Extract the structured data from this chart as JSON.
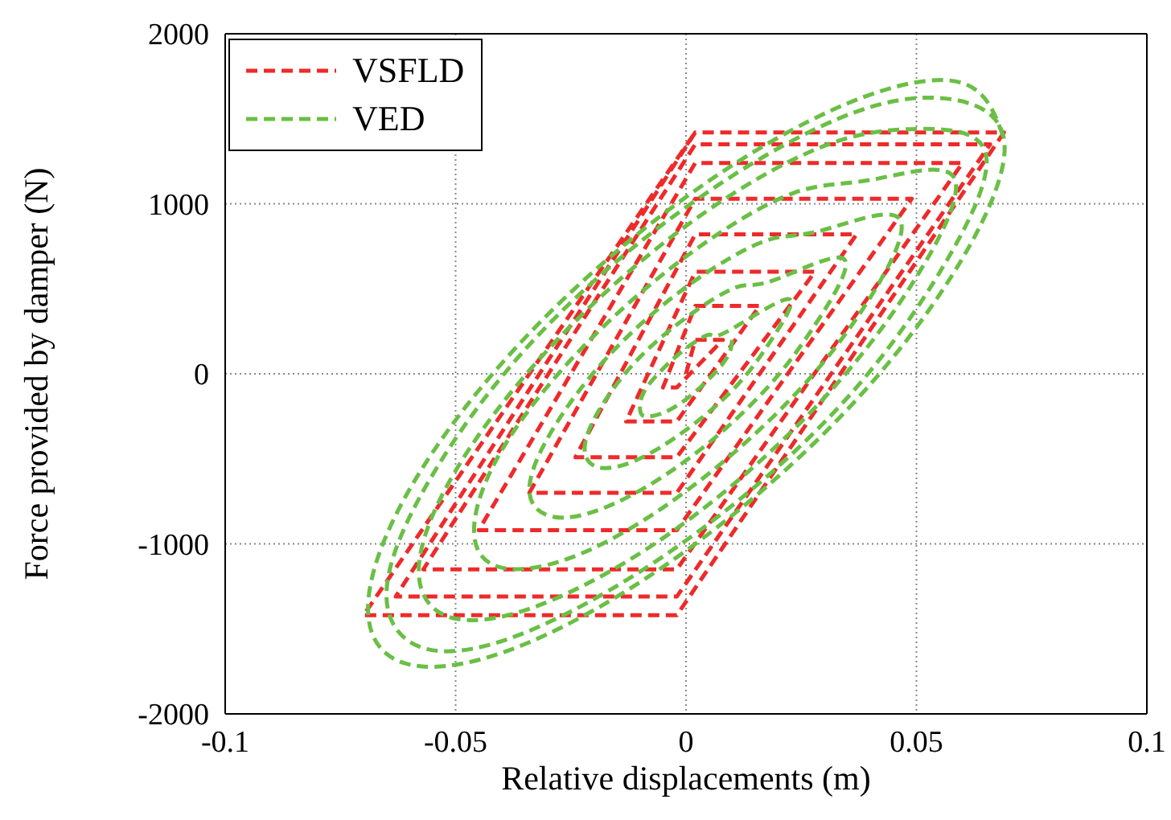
{
  "chart_data": {
    "type": "line",
    "xlabel": "Relative displacements (m)",
    "ylabel": "Force provided by damper (N)",
    "xlim": [
      -0.1,
      0.1
    ],
    "xticks": [
      -0.1,
      -0.05,
      0,
      0.05,
      0.1
    ],
    "ylim": [
      -2000,
      2000
    ],
    "yticks": [
      -2000,
      -1000,
      0,
      1000,
      2000
    ],
    "grid": true,
    "legend": "top left",
    "marker": "none",
    "line_style": "dashed",
    "series": [
      {
        "name": "VSFLD",
        "color": "#ee2a2a",
        "x": [
          0,
          0.002,
          0.008,
          -0.002,
          -0.005,
          0.002,
          0.016,
          -0.002,
          -0.013,
          0.002,
          0.028,
          -0.002,
          -0.024,
          0.002,
          0.037,
          -0.002,
          -0.034,
          0.002,
          0.049,
          -0.002,
          -0.045,
          0.002,
          0.06,
          -0.002,
          -0.057,
          0.002,
          0.066,
          -0.002,
          -0.063,
          0.002,
          0.069,
          -0.002,
          -0.07,
          0.002
        ],
        "values": [
          0,
          200,
          200,
          -80,
          -80,
          400,
          400,
          -280,
          -280,
          600,
          600,
          -490,
          -490,
          820,
          820,
          -700,
          -700,
          1030,
          1030,
          -920,
          -920,
          1240,
          1240,
          -1150,
          -1150,
          1350,
          1350,
          -1310,
          -1310,
          1420,
          1420,
          -1420,
          -1420,
          1420
        ]
      },
      {
        "name": "VED",
        "color": "#6abf45",
        "x": [
          0.01,
          0.009,
          0.005,
          0,
          -0.005,
          -0.009,
          -0.01,
          -0.009,
          -0.005,
          0,
          0.005,
          0.009,
          0.022,
          0.019,
          0.011,
          0,
          -0.011,
          -0.019,
          -0.022,
          -0.019,
          -0.011,
          0,
          0.011,
          0.019,
          0.034,
          0.029,
          0.017,
          0,
          -0.017,
          -0.029,
          -0.034,
          -0.029,
          -0.017,
          0,
          0.017,
          0.029,
          0.046,
          0.04,
          0.023,
          0,
          -0.023,
          -0.04,
          -0.046,
          -0.04,
          -0.023,
          0,
          0.023,
          0.04,
          0.058,
          0.05,
          0.029,
          0,
          -0.029,
          -0.05,
          -0.058,
          -0.05,
          -0.029,
          0,
          0.029,
          0.05,
          0.065,
          0.056,
          0.033,
          0,
          -0.033,
          -0.056,
          -0.065,
          -0.056,
          -0.033,
          0,
          0.033,
          0.056,
          0.069,
          0.06,
          0.035,
          0,
          -0.035,
          -0.06,
          -0.069,
          -0.06,
          -0.035,
          0,
          0.035,
          0.06,
          0.069
        ],
        "values": [
          200,
          100,
          -30,
          -150,
          -230,
          -250,
          -200,
          -100,
          30,
          150,
          230,
          250,
          440,
          220,
          -70,
          -330,
          -510,
          -550,
          -440,
          -220,
          70,
          330,
          510,
          550,
          680,
          330,
          -100,
          -510,
          -780,
          -840,
          -680,
          -330,
          100,
          510,
          780,
          840,
          920,
          450,
          -140,
          -690,
          -1060,
          -1140,
          -920,
          -450,
          140,
          690,
          1060,
          1140,
          1160,
          570,
          -170,
          -870,
          -1330,
          -1440,
          -1160,
          -570,
          170,
          870,
          1330,
          1440,
          1300,
          640,
          -200,
          -980,
          -1500,
          -1620,
          -1300,
          -640,
          200,
          980,
          1500,
          1620,
          1380,
          680,
          -210,
          -1040,
          -1590,
          -1710,
          -1380,
          -680,
          210,
          1040,
          1590,
          1710,
          1380
        ]
      }
    ]
  }
}
